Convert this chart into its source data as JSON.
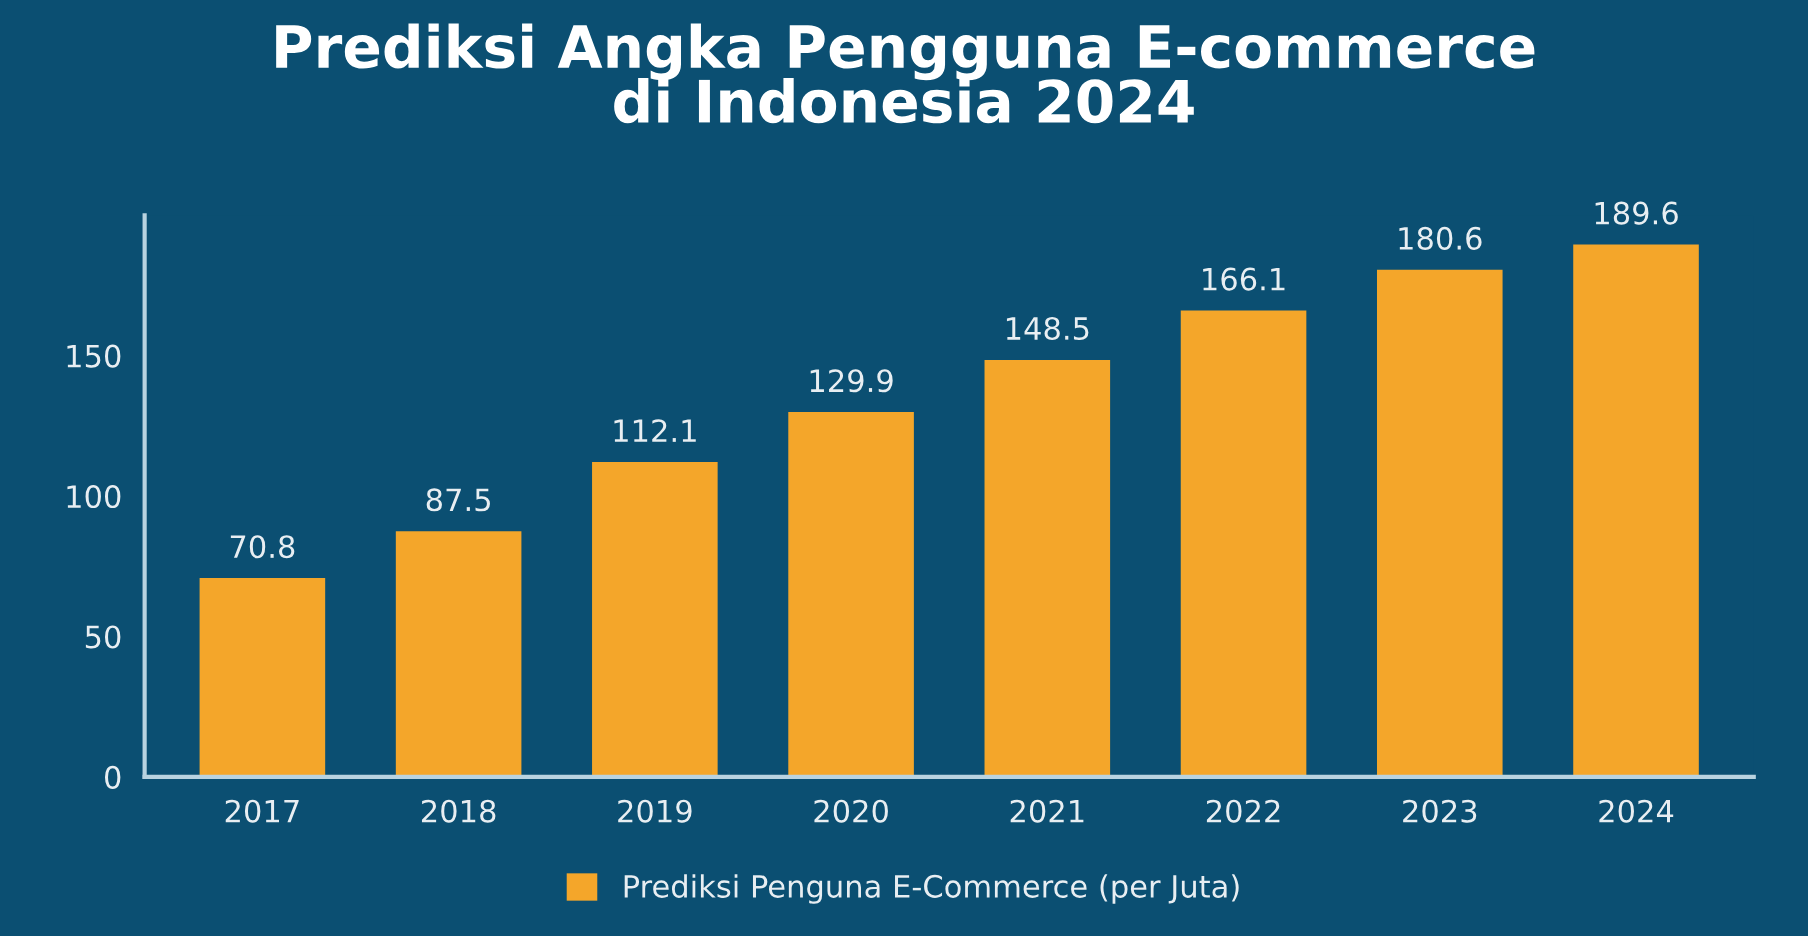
{
  "chart_data": {
    "type": "bar",
    "title": "Prediksi Angka Pengguna E-commerce\ndi Indonesia 2024",
    "categories": [
      "2017",
      "2018",
      "2019",
      "2020",
      "2021",
      "2022",
      "2023",
      "2024"
    ],
    "series": [
      {
        "name": "Prediksi Penguna E-Commerce (per Juta)",
        "color": "#f4a62a",
        "values": [
          70.8,
          87.5,
          112.1,
          129.9,
          148.5,
          166.1,
          180.6,
          189.6
        ]
      }
    ],
    "ylim": [
      0,
      200
    ],
    "yticks": [
      0,
      50,
      100,
      150
    ],
    "grid": false,
    "legend": "bottom",
    "data_labels": true
  }
}
